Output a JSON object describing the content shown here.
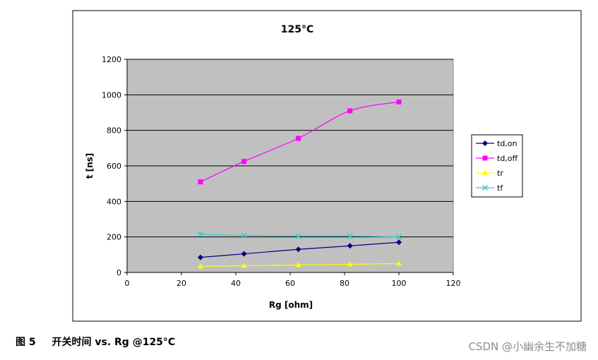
{
  "chart_data": {
    "type": "line",
    "title": "125°C",
    "xlabel": "Rg [ohm]",
    "ylabel": "t [ns]",
    "xlim": [
      0,
      120
    ],
    "ylim": [
      0,
      1200
    ],
    "xticks": [
      0,
      20,
      40,
      60,
      80,
      100,
      120
    ],
    "yticks": [
      0,
      200,
      400,
      600,
      800,
      1000,
      1200
    ],
    "x": [
      27,
      43,
      63,
      82,
      100
    ],
    "grid": "horizontal",
    "legend_position": "right",
    "plot_background": "#c0c0c0",
    "series": [
      {
        "name": "td,on",
        "color": "#000080",
        "marker": "diamond",
        "values": [
          85,
          105,
          130,
          150,
          170
        ]
      },
      {
        "name": "td,off",
        "color": "#ff00ff",
        "marker": "square",
        "values": [
          510,
          625,
          755,
          910,
          960
        ]
      },
      {
        "name": "tr",
        "color": "#ffff00",
        "marker": "triangle",
        "values": [
          35,
          38,
          42,
          46,
          50
        ]
      },
      {
        "name": "tf",
        "color": "#33cccc",
        "marker": "x",
        "values": [
          215,
          208,
          205,
          205,
          200
        ]
      }
    ]
  },
  "caption": {
    "figure_number": "图 5",
    "text": "开关时间 vs. Rg @125°C"
  },
  "watermark": "CSDN @小幽余生不加糖"
}
